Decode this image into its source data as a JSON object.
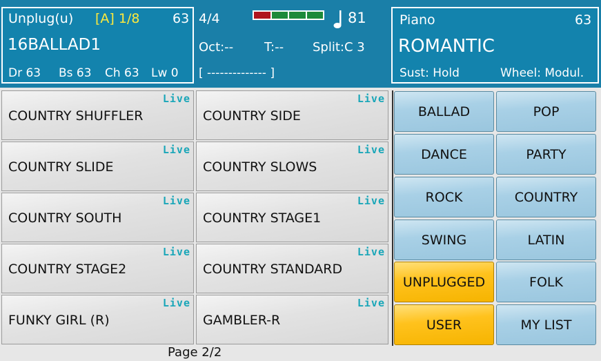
{
  "header": {
    "style_panel": {
      "set_name": "Unplug(u)",
      "variation": "[A] 1/8",
      "style_volume": "63",
      "style_name": "16BALLAD1",
      "track_volumes": [
        "Dr 63",
        "Bs 63",
        "Ch 63",
        "Lw 0"
      ]
    },
    "center_panel": {
      "time_signature": "4/4",
      "beat_meter": [
        "#b0151e",
        "#1d8a3a",
        "#1d8a3a",
        "#1d8a3a"
      ],
      "tempo_icon": "note-icon",
      "tempo": "81",
      "octave": "Oct:--",
      "transpose": "T:--",
      "split": "Split:C 3",
      "chord_display": "[ -------------- ]"
    },
    "voice_panel": {
      "voice_category": "Piano",
      "voice_volume": "63",
      "voice_name": "ROMANTIC",
      "sustain": "Sust: Hold",
      "wheel": "Wheel: Modul."
    }
  },
  "styles": [
    {
      "name": "COUNTRY SHUFFLER",
      "tag": "Live"
    },
    {
      "name": "COUNTRY SIDE",
      "tag": "Live"
    },
    {
      "name": "COUNTRY SLIDE",
      "tag": "Live"
    },
    {
      "name": "COUNTRY SLOWS",
      "tag": "Live"
    },
    {
      "name": "COUNTRY SOUTH",
      "tag": "Live"
    },
    {
      "name": "COUNTRY STAGE1",
      "tag": "Live"
    },
    {
      "name": "COUNTRY STAGE2",
      "tag": "Live"
    },
    {
      "name": "COUNTRY STANDARD",
      "tag": "Live"
    },
    {
      "name": "FUNKY GIRL (R)",
      "tag": "Live"
    },
    {
      "name": "GAMBLER-R",
      "tag": "Live"
    }
  ],
  "categories": [
    {
      "label": "BALLAD",
      "selected": false
    },
    {
      "label": "POP",
      "selected": false
    },
    {
      "label": "DANCE",
      "selected": false
    },
    {
      "label": "PARTY",
      "selected": false
    },
    {
      "label": "ROCK",
      "selected": false
    },
    {
      "label": "COUNTRY",
      "selected": false
    },
    {
      "label": "SWING",
      "selected": false
    },
    {
      "label": "LATIN",
      "selected": false
    },
    {
      "label": "UNPLUGGED",
      "selected": true
    },
    {
      "label": "FOLK",
      "selected": false
    },
    {
      "label": "USER",
      "selected": true
    },
    {
      "label": "MY LIST",
      "selected": false
    }
  ],
  "footer": {
    "page_label": "Page 2/2"
  }
}
